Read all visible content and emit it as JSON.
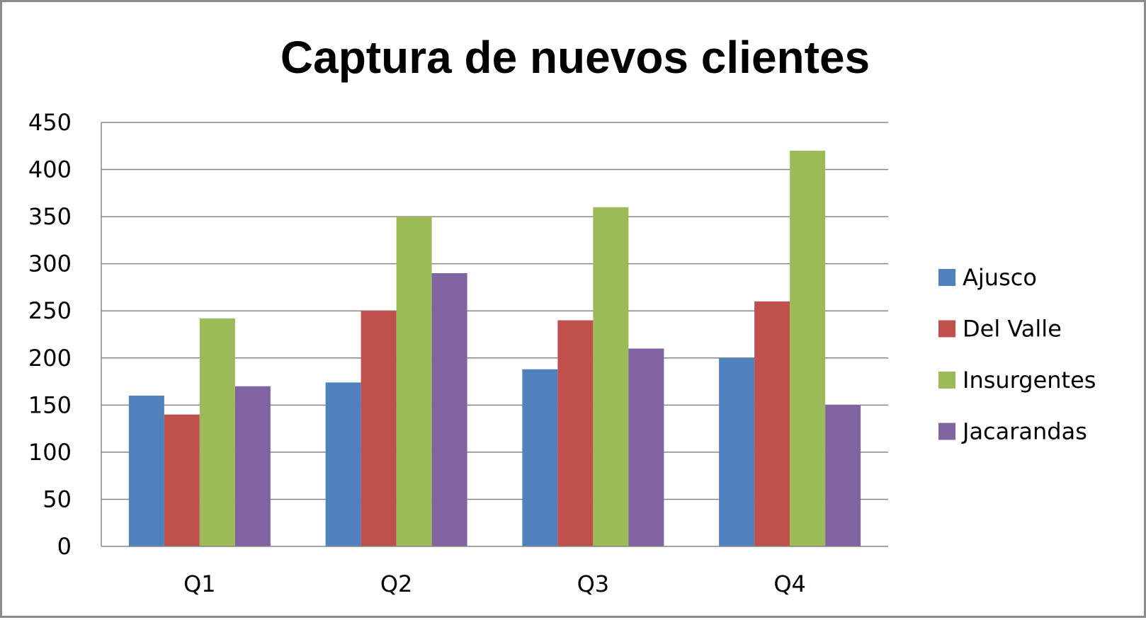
{
  "chart_data": {
    "type": "bar",
    "title": "Captura de nuevos clientes",
    "xlabel": "",
    "ylabel": "",
    "categories": [
      "Q1",
      "Q2",
      "Q3",
      "Q4"
    ],
    "series": [
      {
        "name": "Ajusco",
        "color": "#4F81BD",
        "values": [
          160,
          174,
          188,
          200
        ]
      },
      {
        "name": "Del Valle",
        "color": "#C0504D",
        "values": [
          140,
          250,
          240,
          260
        ]
      },
      {
        "name": "Insurgentes",
        "color": "#9BBB59",
        "values": [
          242,
          350,
          360,
          420
        ]
      },
      {
        "name": "Jacarandas",
        "color": "#8064A2",
        "values": [
          170,
          290,
          210,
          150
        ]
      }
    ],
    "ylim": [
      0,
      450
    ],
    "yticks": [
      0,
      50,
      100,
      150,
      200,
      250,
      300,
      350,
      400,
      450
    ],
    "grid": true,
    "legend_position": "right"
  }
}
